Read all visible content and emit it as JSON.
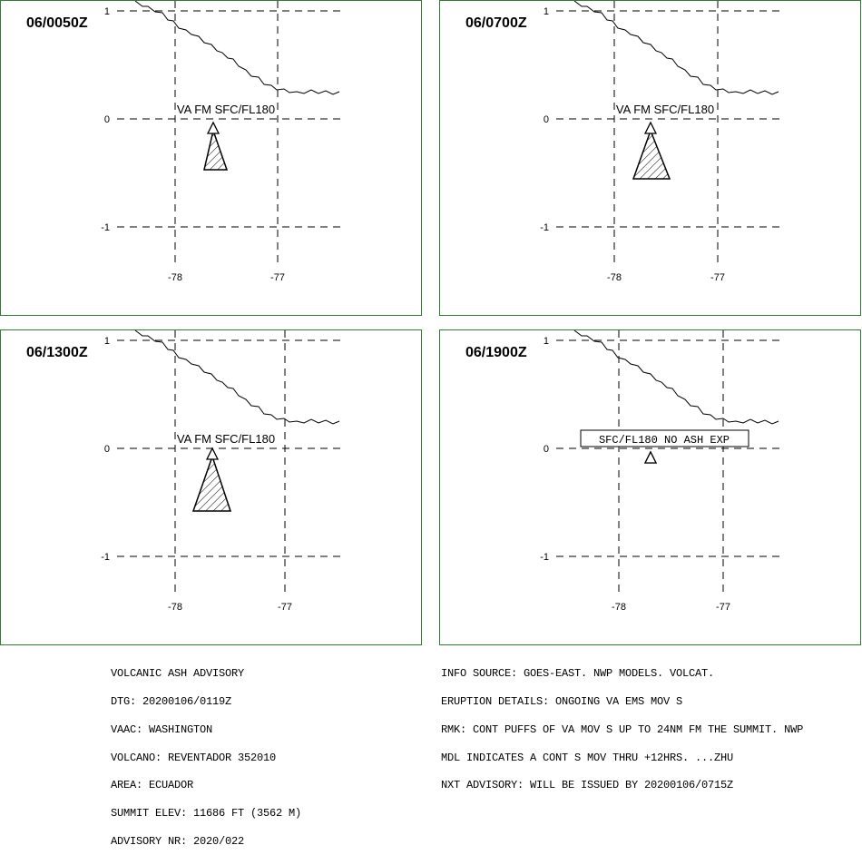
{
  "panels": [
    {
      "time": "06/0050Z",
      "label": "VA FM SFC/FL180",
      "label_boxed": false,
      "ash_present": true,
      "lat_ticks": [
        "1",
        "0",
        "-1"
      ],
      "lon_ticks": [
        "-78",
        "-77"
      ]
    },
    {
      "time": "06/0700Z",
      "label": "VA FM SFC/FL180",
      "label_boxed": false,
      "ash_present": true,
      "lat_ticks": [
        "1",
        "0",
        "-1"
      ],
      "lon_ticks": [
        "-78",
        "-77"
      ]
    },
    {
      "time": "06/1300Z",
      "label": "VA FM SFC/FL180",
      "label_boxed": false,
      "ash_present": true,
      "lat_ticks": [
        "1",
        "0",
        "-1"
      ],
      "lon_ticks": [
        "-78",
        "-77"
      ]
    },
    {
      "time": "06/1900Z",
      "label": "SFC/FL180 NO ASH EXP",
      "label_boxed": true,
      "ash_present": false,
      "lat_ticks": [
        "1",
        "0",
        "-1"
      ],
      "lon_ticks": [
        "-78",
        "-77"
      ]
    }
  ],
  "advisory_left": [
    "VOLCANIC ASH ADVISORY",
    "DTG: 20200106/0119Z",
    "VAAC: WASHINGTON",
    "VOLCANO: REVENTADOR 352010",
    "AREA: ECUADOR",
    "SUMMIT ELEV: 11686 FT (3562 M)",
    "ADVISORY NR: 2020/022"
  ],
  "advisory_right": [
    "INFO SOURCE: GOES-EAST. NWP MODELS. VOLCAT.",
    "ERUPTION DETAILS: ONGOING VA EMS MOV S",
    "RMK: CONT PUFFS OF VA MOV S UP TO 24NM FM THE SUMMIT. NWP",
    "MDL INDICATES A CONT S MOV THRU +12HRS. ...ZHU",
    "NXT ADVISORY: WILL BE ISSUED BY 20200106/0715Z"
  ],
  "colors": {
    "frame": "#2e7d32",
    "ink": "#000000"
  },
  "icons": {
    "volcano": "volcano-triangle-icon"
  }
}
